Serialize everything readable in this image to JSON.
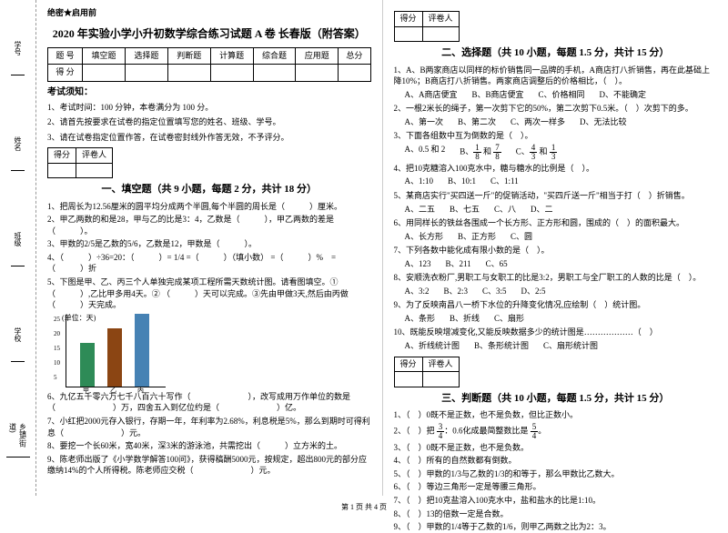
{
  "binding": {
    "labels": [
      "乡镇(街道)",
      "学校",
      "班级",
      "姓名",
      "学号"
    ],
    "marks": [
      "封",
      "装",
      "线",
      "内",
      "不",
      "要",
      "答",
      "题"
    ]
  },
  "secret": "绝密★启用前",
  "title": "2020 年实验小学小升初数学综合练习试题 A 卷 长春版（附答案）",
  "scoreTable": {
    "headers": [
      "题 号",
      "填空题",
      "选择题",
      "判断题",
      "计算题",
      "综合题",
      "应用题",
      "总分"
    ],
    "row2": "得 分"
  },
  "noticeTitle": "考试须知：",
  "notices": [
    "1、考试时间：100 分钟，本卷满分为 100 分。",
    "2、请首先按要求在试卷的指定位置填写您的姓名、班级、学号。",
    "3、请在试卷指定位置作答，在试卷密封线外作答无效，不予评分。"
  ],
  "scoreBox": {
    "c1": "得分",
    "c2": "评卷人"
  },
  "sec1": {
    "title": "一、填空题（共 9 小题，每题 2 分，共计 18 分）",
    "items": [
      "1、把周长为12.56厘米的圆平均分成两个半圆,每个半圆的周长是（　　　）厘米。",
      "2、甲乙两数的和是28，甲与乙的比是3：4，乙数是（　　　），甲乙两数的差是（　　　）。",
      "3、甲数的2/5是乙数的5/6，乙数是12，甲数是（　　　）。",
      "4、（　　　）÷36=20：（　　　）= 1/4 =（　　　）（填小数） =（　　　）%　=（　　　）折",
      "5、下图是甲、乙、丙三个人单独完成某项工程所需天数统计图。请看图填空。① （　　　）,乙比甲多用4天。② （　　　）天可以完成。③先由甲做3天,然后由丙做（　　　）天完成。"
    ]
  },
  "chart": {
    "ylabel": "(单位：天)",
    "yticks": [
      "25",
      "20",
      "15",
      "10",
      "5"
    ],
    "bars": [
      {
        "label": "甲",
        "value": 15,
        "color": "#2e8b57"
      },
      {
        "label": "乙",
        "value": 20,
        "color": "#8b4513"
      },
      {
        "label": "丙",
        "value": 25,
        "color": "#4682b4"
      }
    ],
    "ymax": 25
  },
  "sec1b": [
    "6、九亿五千零六万七千八百六十写作（　　　　　　　），改写成用万作单位的数是（　　　　　　　）万，四舍五入到亿位约是（　　　　　　　）亿。",
    "7、小红把2000元存入银行，存期一年，年利率为2.68%，利息税是5%，那么到期时可得利息（　　　　　　　）元。",
    "8、要挖一个长60米，宽40米，深3米的游泳池，共需挖出（　　　）立方米的土。",
    "9、陈老师出版了《小学数学解答100问》，获得稿酬5000元，按规定，超出800元的部分应缴纳14%的个人所得税。陈老师应交税（　　　　　　　）元。"
  ],
  "sec2": {
    "title": "二、选择题（共 10 小题，每题 1.5 分，共计 15 分）",
    "items": [
      {
        "q": "1、A、B两家商店以同样的标价销售同一品牌的手机，A商店打八折销售，再在此基础上降10%；B商店打八折销售。两家商店调整后的价格相比，（　）。",
        "opts": [
          "A商店便宜",
          "B商店便宜",
          "价格相同",
          "不能确定"
        ]
      },
      {
        "q": "2、一根2米长的绳子，第一次剪下它的50%，第二次剪下0.5米。（　）次剪下的多。",
        "opts": [
          "第一次",
          "第二次",
          "两次一样多",
          "无法比较"
        ]
      },
      {
        "q": "3、下面各组数中互为倒数的是（　）。"
      },
      {
        "q": "4、把10克糖溶入100克水中，糖与糖水的比例是（　）。",
        "opts": [
          "1:10",
          "10:1",
          "1:11"
        ]
      },
      {
        "q": "5、某商店实行\"买四送一斤\"的促销活动，\"买四斤送一斤\"相当于打（　）折销售。",
        "opts": [
          "二五",
          "七五",
          "八",
          "二"
        ]
      },
      {
        "q": "6、用同样长的铁丝各围成一个长方形、正方形和圆，围成的（　）的面积最大。",
        "opts": [
          "长方形",
          "正方形",
          "圆"
        ]
      },
      {
        "q": "7、下列各数中能化成有限小数的是（　）。",
        "opts": [
          "123",
          "211",
          "65"
        ]
      },
      {
        "q": "8、安顺洗衣粉厂,男职工与女职工的比是3:2，男职工与全厂职工的人数的比是（　）。",
        "opts": [
          "3:2",
          "2:3",
          "3:5",
          "2:5"
        ]
      },
      {
        "q": "9、为了反映南昌八一桥下水位的升降变化情况,应绘制（　）统计图。",
        "opts": [
          "条形",
          "折线",
          "扇形"
        ]
      },
      {
        "q": "10、既能反映增减变化,又能反映数据多少的统计图是………………（　）",
        "opts": [
          "折线统计图",
          "条形统计图",
          "扇形统计图"
        ]
      }
    ],
    "q3opts": {
      "A": "0.5 和 2",
      "B_n1": "1",
      "B_d1": "8",
      "B_n2": "7",
      "B_d2": "8",
      "C_n1": "4",
      "C_d1": "3",
      "C_n2": "1",
      "C_d2": "3"
    }
  },
  "sec3": {
    "title": "三、判断题（共 10 小题，每题 1.5 分，共计 15 分）",
    "items": [
      "1、（　）0既不是正数，也不是负数，但比正数小。",
      "2、（　）把　　：0.6化成最简整数比是　　。",
      "3、（　）0既不是正数，也不是负数。",
      "4、（　）所有的自然数都有倒数。",
      "5、（　）甲数的1/3与乙数的1/3的和等于，那么甲数比乙数大。",
      "6、（　）等边三角形一定是等腰三角形。",
      "7、（　）把10克盐溶入100克水中，盐和盐水的比是1:10。",
      "8、（　）13的倍数一定是合数。",
      "9、（　）甲数的1/4等于乙数的1/6，则甲乙两数之比为2：3。"
    ],
    "frac2a_n": "3",
    "frac2a_d": "4",
    "frac2b_n": "5",
    "frac2b_d": "4"
  },
  "footer": "第 1 页 共 4 页"
}
